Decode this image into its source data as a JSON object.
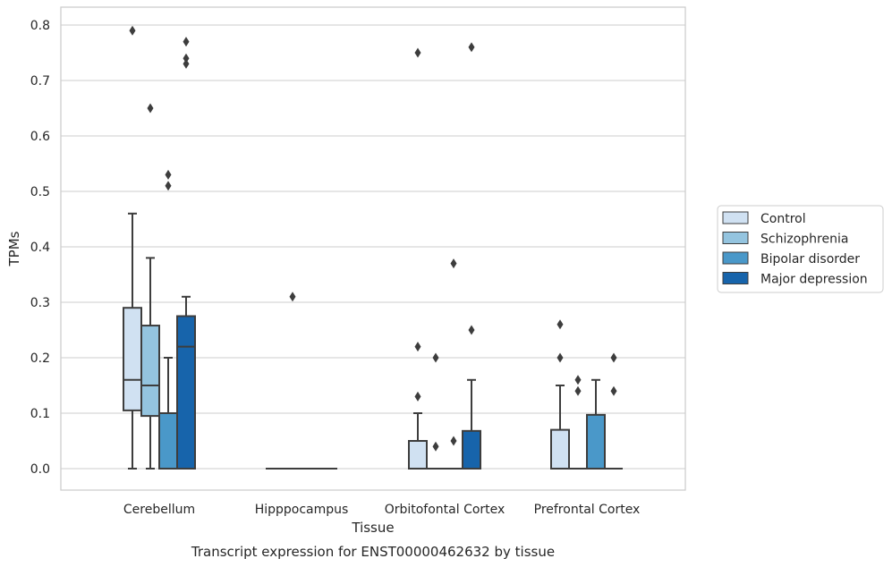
{
  "chart_data": {
    "type": "box",
    "title": "Transcript expression for ENST00000462632 by tissue",
    "xlabel": "Tissue",
    "ylabel": "TPMs",
    "ylim": [
      -0.04,
      0.83
    ],
    "yticks": [
      "0.0",
      "0.1",
      "0.2",
      "0.3",
      "0.4",
      "0.5",
      "0.6",
      "0.7",
      "0.8"
    ],
    "grid": true,
    "legend_position": "right",
    "categories": [
      "Cerebellum",
      "Hipppocampus",
      "Orbitofontal Cortex",
      "Prefrontal Cortex"
    ],
    "series": [
      {
        "name": "Control",
        "color": "#d0e1f2",
        "boxes": [
          {
            "whisker_low": 0.0,
            "q1": 0.105,
            "median": 0.16,
            "q3": 0.29,
            "whisker_high": 0.46,
            "outliers": [
              0.79
            ]
          },
          {
            "whisker_low": 0.0,
            "q1": 0.0,
            "median": 0.0,
            "q3": 0.0,
            "whisker_high": 0.0,
            "outliers": []
          },
          {
            "whisker_low": 0.0,
            "q1": 0.0,
            "median": 0.0,
            "q3": 0.05,
            "whisker_high": 0.1,
            "outliers": [
              0.13,
              0.22,
              0.75
            ]
          },
          {
            "whisker_low": 0.0,
            "q1": 0.0,
            "median": 0.0,
            "q3": 0.07,
            "whisker_high": 0.15,
            "outliers": [
              0.2,
              0.26
            ]
          }
        ]
      },
      {
        "name": "Schizophrenia",
        "color": "#94c4df",
        "boxes": [
          {
            "whisker_low": 0.0,
            "q1": 0.095,
            "median": 0.15,
            "q3": 0.258,
            "whisker_high": 0.38,
            "outliers": [
              0.65
            ]
          },
          {
            "whisker_low": 0.0,
            "q1": 0.0,
            "median": 0.0,
            "q3": 0.0,
            "whisker_high": 0.0,
            "outliers": [
              0.31
            ]
          },
          {
            "whisker_low": 0.0,
            "q1": 0.0,
            "median": 0.0,
            "q3": 0.0,
            "whisker_high": 0.0,
            "outliers": [
              0.04,
              0.2
            ]
          },
          {
            "whisker_low": 0.0,
            "q1": 0.0,
            "median": 0.0,
            "q3": 0.0,
            "whisker_high": 0.0,
            "outliers": [
              0.14,
              0.16
            ]
          }
        ]
      },
      {
        "name": "Bipolar disorder",
        "color": "#4a98c9",
        "boxes": [
          {
            "whisker_low": 0.0,
            "q1": 0.0,
            "median": 0.0,
            "q3": 0.1,
            "whisker_high": 0.2,
            "outliers": [
              0.51,
              0.53
            ]
          },
          {
            "whisker_low": 0.0,
            "q1": 0.0,
            "median": 0.0,
            "q3": 0.0,
            "whisker_high": 0.0,
            "outliers": []
          },
          {
            "whisker_low": 0.0,
            "q1": 0.0,
            "median": 0.0,
            "q3": 0.0,
            "whisker_high": 0.0,
            "outliers": [
              0.05,
              0.37
            ]
          },
          {
            "whisker_low": 0.0,
            "q1": 0.0,
            "median": 0.0,
            "q3": 0.097,
            "whisker_high": 0.16,
            "outliers": []
          }
        ]
      },
      {
        "name": "Major depression",
        "color": "#1764ab",
        "boxes": [
          {
            "whisker_low": 0.0,
            "q1": 0.0,
            "median": 0.22,
            "q3": 0.275,
            "whisker_high": 0.31,
            "outliers": [
              0.73,
              0.74,
              0.77
            ]
          },
          {
            "whisker_low": 0.0,
            "q1": 0.0,
            "median": 0.0,
            "q3": 0.0,
            "whisker_high": 0.0,
            "outliers": []
          },
          {
            "whisker_low": 0.0,
            "q1": 0.0,
            "median": 0.0,
            "q3": 0.068,
            "whisker_high": 0.16,
            "outliers": [
              0.25,
              0.76
            ]
          },
          {
            "whisker_low": 0.0,
            "q1": 0.0,
            "median": 0.0,
            "q3": 0.0,
            "whisker_high": 0.0,
            "outliers": [
              0.14,
              0.2
            ]
          }
        ]
      }
    ]
  }
}
